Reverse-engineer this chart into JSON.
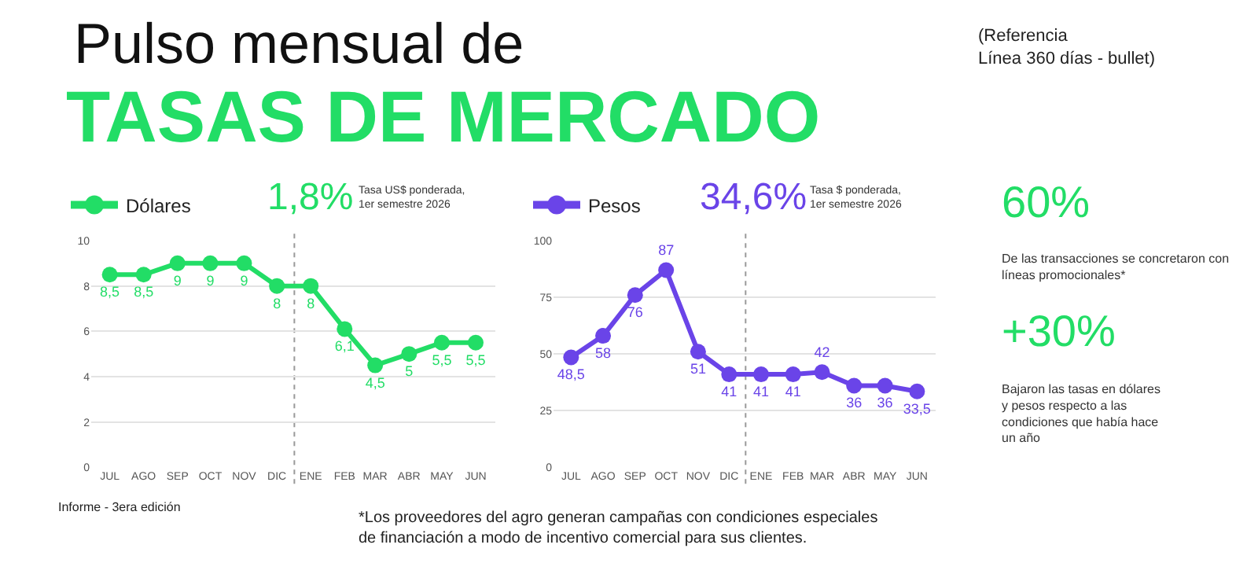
{
  "chart_data": [
    {
      "type": "line",
      "title": "Pulso mensual de",
      "subtitle": "TASAS DE MERCADO",
      "x": [
        "2025-07-15",
        "2025-08-15",
        "2025-09-15",
        "2025-10-15",
        "2025-11-15",
        "2025-12-15",
        "2026-01-15",
        "2026-02-15",
        "2026-03-15",
        "2026-04-15",
        "2026-05-15",
        "2026-06-15"
      ],
      "xlim": [
        "2025-06-28",
        "2026-07-03"
      ],
      "xticks": [
        {
          "value": "2025-07-15",
          "label": "JUL"
        },
        {
          "value": "2025-08-15",
          "label": "AGO"
        },
        {
          "value": "2025-09-15",
          "label": "SEP"
        },
        {
          "value": "2025-10-15",
          "label": "OCT"
        },
        {
          "value": "2025-11-15",
          "label": "NOV"
        },
        {
          "value": "2025-12-15",
          "label": "DIC"
        },
        {
          "value": "2026-01-15",
          "label": "ENE"
        },
        {
          "value": "2026-02-15",
          "label": "FEB"
        },
        {
          "value": "2026-03-15",
          "label": "MAR"
        },
        {
          "value": "2026-04-15",
          "label": "ABR"
        },
        {
          "value": "2026-05-15",
          "label": "MAY"
        },
        {
          "value": "2026-06-15",
          "label": "JUN"
        }
      ],
      "series": [
        {
          "name": "Dólares",
          "color": "#22dd66",
          "values": [
            8.5,
            8.5,
            9,
            9,
            9,
            8,
            8,
            6.1,
            4.5,
            5,
            5.5,
            5.5
          ],
          "value_labels": [
            "8,5",
            "8,5",
            "9",
            "9",
            "9",
            "8",
            "8",
            "6,1",
            "4,5",
            "5",
            "5,5",
            "5,5"
          ]
        }
      ],
      "ylim": [
        0,
        10
      ],
      "yticks": [
        0,
        2,
        4,
        6,
        8,
        10
      ],
      "grid": "y",
      "legend": "top left",
      "marker": "circle",
      "line_style": "solid",
      "ref_lines": [
        {
          "axis": "x",
          "value": "2025-12-31",
          "color": "#999999",
          "line_style": "dotted"
        }
      ],
      "annotations": [
        "(Referencia\nLínea 360 días - bullet)",
        "1,8%",
        "Tasa US$ ponderada,\n1er semestre 2026",
        "Informe - 3era edición"
      ]
    },
    {
      "type": "line",
      "x": [
        "2025-07-15",
        "2025-08-15",
        "2025-09-15",
        "2025-10-15",
        "2025-11-15",
        "2025-12-15",
        "2026-01-15",
        "2026-02-15",
        "2026-03-15",
        "2026-04-15",
        "2026-05-15",
        "2026-06-15"
      ],
      "xlim": [
        "2025-06-28",
        "2026-07-03"
      ],
      "xticks": [
        {
          "value": "2025-07-15",
          "label": "JUL"
        },
        {
          "value": "2025-08-15",
          "label": "AGO"
        },
        {
          "value": "2025-09-15",
          "label": "SEP"
        },
        {
          "value": "2025-10-15",
          "label": "OCT"
        },
        {
          "value": "2025-11-15",
          "label": "NOV"
        },
        {
          "value": "2025-12-15",
          "label": "DIC"
        },
        {
          "value": "2026-01-15",
          "label": "ENE"
        },
        {
          "value": "2026-02-15",
          "label": "FEB"
        },
        {
          "value": "2026-03-15",
          "label": "MAR"
        },
        {
          "value": "2026-04-15",
          "label": "ABR"
        },
        {
          "value": "2026-05-15",
          "label": "MAY"
        },
        {
          "value": "2026-06-15",
          "label": "JUN"
        }
      ],
      "series": [
        {
          "name": "Pesos",
          "color": "#6a44e8",
          "values": [
            48.5,
            58,
            76,
            87,
            51,
            41,
            41,
            41,
            42,
            36,
            36,
            33.5
          ],
          "value_labels": [
            "48,5",
            "58",
            "76",
            "87",
            "51",
            "41",
            "41",
            "41",
            "42",
            "36",
            "36",
            "33,5"
          ]
        }
      ],
      "ylim": [
        0,
        100
      ],
      "yticks": [
        0,
        25,
        50,
        75,
        100
      ],
      "grid": "y",
      "legend": "top left",
      "marker": "circle",
      "line_style": "solid",
      "ref_lines": [
        {
          "axis": "x",
          "value": "2025-12-31",
          "color": "#999999",
          "line_style": "dotted"
        }
      ],
      "annotations": [
        "34,6%",
        "Tasa $ ponderada,\n1er semestre 2026",
        "*Los proveedores del agro generan campañas con condiciones especiales\nde financiación a modo de incentivo comercial para sus clientes."
      ]
    },
    {
      "type": "other",
      "annotations": [
        "60%",
        "De las transacciones se concretaron con\nlíneas promocionales*",
        "+30%",
        "Bajaron las tasas en dólares\ny pesos respecto a las\ncondiciones que había hace\nun año"
      ]
    }
  ]
}
